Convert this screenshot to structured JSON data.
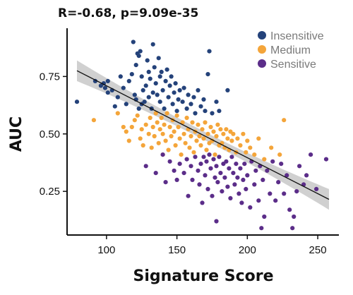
{
  "chart_data": {
    "type": "scatter",
    "title": "R=-0.68, p=9.09e-35",
    "xlabel": "Signature Score",
    "ylabel": "AUC",
    "xlim": [
      72,
      265
    ],
    "ylim": [
      0.06,
      0.96
    ],
    "xticks": [
      100,
      150,
      200,
      250
    ],
    "yticks": [
      0.25,
      0.5,
      0.75
    ],
    "xtick_labels": [
      "100",
      "150",
      "200",
      "250"
    ],
    "ytick_labels": [
      "0.25",
      "0.50",
      "0.75"
    ],
    "grid": false,
    "legend_position": "top-right",
    "regression": {
      "x": [
        79,
        258
      ],
      "y": [
        0.775,
        0.215
      ],
      "ci_halfwidth_ends": 0.045,
      "ci_halfwidth_mid": 0.018,
      "line_color": "#111111",
      "band_color": "#c8c8c8"
    },
    "series": [
      {
        "name": "Insensitive",
        "color": "#24427a",
        "points": [
          [
            79,
            0.64
          ],
          [
            92,
            0.73
          ],
          [
            96,
            0.71
          ],
          [
            98,
            0.72
          ],
          [
            99,
            0.7
          ],
          [
            101,
            0.73
          ],
          [
            101,
            0.68
          ],
          [
            104,
            0.69
          ],
          [
            106,
            0.62
          ],
          [
            108,
            0.66
          ],
          [
            110,
            0.75
          ],
          [
            112,
            0.7
          ],
          [
            114,
            0.63
          ],
          [
            116,
            0.73
          ],
          [
            118,
            0.76
          ],
          [
            119,
            0.9
          ],
          [
            120,
            0.67
          ],
          [
            121,
            0.8
          ],
          [
            121,
            0.65
          ],
          [
            122,
            0.85
          ],
          [
            123,
            0.61
          ],
          [
            123,
            0.84
          ],
          [
            124,
            0.86
          ],
          [
            125,
            0.63
          ],
          [
            125,
            0.75
          ],
          [
            126,
            0.69
          ],
          [
            127,
            0.64
          ],
          [
            128,
            0.71
          ],
          [
            129,
            0.82
          ],
          [
            130,
            0.66
          ],
          [
            130,
            0.77
          ],
          [
            131,
            0.74
          ],
          [
            132,
            0.61
          ],
          [
            133,
            0.89
          ],
          [
            133,
            0.68
          ],
          [
            134,
            0.79
          ],
          [
            135,
            0.72
          ],
          [
            136,
            0.67
          ],
          [
            137,
            0.83
          ],
          [
            138,
            0.64
          ],
          [
            138,
            0.75
          ],
          [
            139,
            0.77
          ],
          [
            140,
            0.69
          ],
          [
            141,
            0.61
          ],
          [
            142,
            0.73
          ],
          [
            143,
            0.78
          ],
          [
            144,
            0.66
          ],
          [
            145,
            0.71
          ],
          [
            146,
            0.75
          ],
          [
            147,
            0.63
          ],
          [
            148,
            0.68
          ],
          [
            149,
            0.72
          ],
          [
            150,
            0.6
          ],
          [
            151,
            0.65
          ],
          [
            152,
            0.69
          ],
          [
            154,
            0.64
          ],
          [
            155,
            0.7
          ],
          [
            157,
            0.61
          ],
          [
            158,
            0.67
          ],
          [
            160,
            0.63
          ],
          [
            162,
            0.66
          ],
          [
            163,
            0.59
          ],
          [
            165,
            0.69
          ],
          [
            167,
            0.62
          ],
          [
            169,
            0.65
          ],
          [
            170,
            0.6
          ],
          [
            172,
            0.76
          ],
          [
            173,
            0.86
          ],
          [
            175,
            0.59
          ],
          [
            178,
            0.64
          ],
          [
            180,
            0.6
          ],
          [
            186,
            0.69
          ]
        ]
      },
      {
        "name": "Medium",
        "color": "#f4a53a",
        "points": [
          [
            91,
            0.56
          ],
          [
            108,
            0.59
          ],
          [
            112,
            0.53
          ],
          [
            114,
            0.51
          ],
          [
            116,
            0.47
          ],
          [
            118,
            0.53
          ],
          [
            120,
            0.56
          ],
          [
            122,
            0.58
          ],
          [
            124,
            0.48
          ],
          [
            125,
            0.52
          ],
          [
            126,
            0.45
          ],
          [
            128,
            0.54
          ],
          [
            130,
            0.5
          ],
          [
            131,
            0.57
          ],
          [
            132,
            0.44
          ],
          [
            133,
            0.53
          ],
          [
            134,
            0.49
          ],
          [
            135,
            0.59
          ],
          [
            136,
            0.55
          ],
          [
            137,
            0.46
          ],
          [
            138,
            0.52
          ],
          [
            139,
            0.57
          ],
          [
            140,
            0.5
          ],
          [
            140,
            0.41
          ],
          [
            141,
            0.54
          ],
          [
            142,
            0.47
          ],
          [
            143,
            0.59
          ],
          [
            144,
            0.43
          ],
          [
            145,
            0.53
          ],
          [
            146,
            0.49
          ],
          [
            147,
            0.56
          ],
          [
            148,
            0.51
          ],
          [
            149,
            0.45
          ],
          [
            150,
            0.58
          ],
          [
            151,
            0.53
          ],
          [
            152,
            0.48
          ],
          [
            153,
            0.41
          ],
          [
            154,
            0.55
          ],
          [
            155,
            0.5
          ],
          [
            156,
            0.46
          ],
          [
            157,
            0.57
          ],
          [
            158,
            0.52
          ],
          [
            159,
            0.44
          ],
          [
            160,
            0.49
          ],
          [
            161,
            0.55
          ],
          [
            162,
            0.42
          ],
          [
            163,
            0.51
          ],
          [
            164,
            0.47
          ],
          [
            165,
            0.54
          ],
          [
            166,
            0.49
          ],
          [
            167,
            0.45
          ],
          [
            168,
            0.52
          ],
          [
            169,
            0.48
          ],
          [
            170,
            0.55
          ],
          [
            171,
            0.43
          ],
          [
            172,
            0.5
          ],
          [
            173,
            0.46
          ],
          [
            174,
            0.53
          ],
          [
            175,
            0.47
          ],
          [
            176,
            0.51
          ],
          [
            177,
            0.41
          ],
          [
            178,
            0.49
          ],
          [
            179,
            0.54
          ],
          [
            180,
            0.45
          ],
          [
            181,
            0.52
          ],
          [
            182,
            0.46
          ],
          [
            183,
            0.5
          ],
          [
            184,
            0.44
          ],
          [
            185,
            0.52
          ],
          [
            186,
            0.48
          ],
          [
            187,
            0.43
          ],
          [
            188,
            0.51
          ],
          [
            189,
            0.47
          ],
          [
            190,
            0.5
          ],
          [
            192,
            0.42
          ],
          [
            193,
            0.48
          ],
          [
            195,
            0.45
          ],
          [
            197,
            0.5
          ],
          [
            199,
            0.42
          ],
          [
            200,
            0.47
          ],
          [
            202,
            0.44
          ],
          [
            205,
            0.41
          ],
          [
            208,
            0.48
          ],
          [
            212,
            0.39
          ],
          [
            217,
            0.44
          ],
          [
            223,
            0.41
          ],
          [
            226,
            0.56
          ]
        ]
      },
      {
        "name": "Sensitive",
        "color": "#5b2d89",
        "points": [
          [
            128,
            0.36
          ],
          [
            135,
            0.33
          ],
          [
            140,
            0.41
          ],
          [
            142,
            0.29
          ],
          [
            145,
            0.38
          ],
          [
            148,
            0.34
          ],
          [
            150,
            0.3
          ],
          [
            152,
            0.37
          ],
          [
            155,
            0.33
          ],
          [
            157,
            0.39
          ],
          [
            158,
            0.23
          ],
          [
            160,
            0.36
          ],
          [
            161,
            0.3
          ],
          [
            163,
            0.4
          ],
          [
            165,
            0.34
          ],
          [
            166,
            0.28
          ],
          [
            167,
            0.37
          ],
          [
            168,
            0.2
          ],
          [
            169,
            0.4
          ],
          [
            170,
            0.32
          ],
          [
            171,
            0.38
          ],
          [
            172,
            0.26
          ],
          [
            173,
            0.41
          ],
          [
            174,
            0.35
          ],
          [
            175,
            0.23
          ],
          [
            176,
            0.39
          ],
          [
            177,
            0.31
          ],
          [
            178,
            0.36
          ],
          [
            178,
            0.12
          ],
          [
            179,
            0.29
          ],
          [
            180,
            0.4
          ],
          [
            181,
            0.33
          ],
          [
            182,
            0.25
          ],
          [
            183,
            0.37
          ],
          [
            184,
            0.31
          ],
          [
            185,
            0.38
          ],
          [
            186,
            0.27
          ],
          [
            187,
            0.35
          ],
          [
            188,
            0.22
          ],
          [
            189,
            0.4
          ],
          [
            190,
            0.33
          ],
          [
            191,
            0.28
          ],
          [
            192,
            0.37
          ],
          [
            193,
            0.31
          ],
          [
            194,
            0.24
          ],
          [
            195,
            0.35
          ],
          [
            196,
            0.2
          ],
          [
            197,
            0.3
          ],
          [
            198,
            0.37
          ],
          [
            199,
            0.26
          ],
          [
            200,
            0.32
          ],
          [
            202,
            0.18
          ],
          [
            203,
            0.38
          ],
          [
            205,
            0.28
          ],
          [
            206,
            0.34
          ],
          [
            208,
            0.21
          ],
          [
            209,
            0.36
          ],
          [
            210,
            0.09
          ],
          [
            211,
            0.3
          ],
          [
            212,
            0.14
          ],
          [
            214,
            0.34
          ],
          [
            216,
            0.24
          ],
          [
            218,
            0.38
          ],
          [
            220,
            0.21
          ],
          [
            222,
            0.29
          ],
          [
            224,
            0.37
          ],
          [
            226,
            0.24
          ],
          [
            228,
            0.32
          ],
          [
            230,
            0.17
          ],
          [
            232,
            0.09
          ],
          [
            233,
            0.14
          ],
          [
            235,
            0.25
          ],
          [
            237,
            0.36
          ],
          [
            240,
            0.28
          ],
          [
            242,
            0.32
          ],
          [
            245,
            0.41
          ],
          [
            249,
            0.26
          ],
          [
            256,
            0.39
          ]
        ]
      }
    ]
  }
}
